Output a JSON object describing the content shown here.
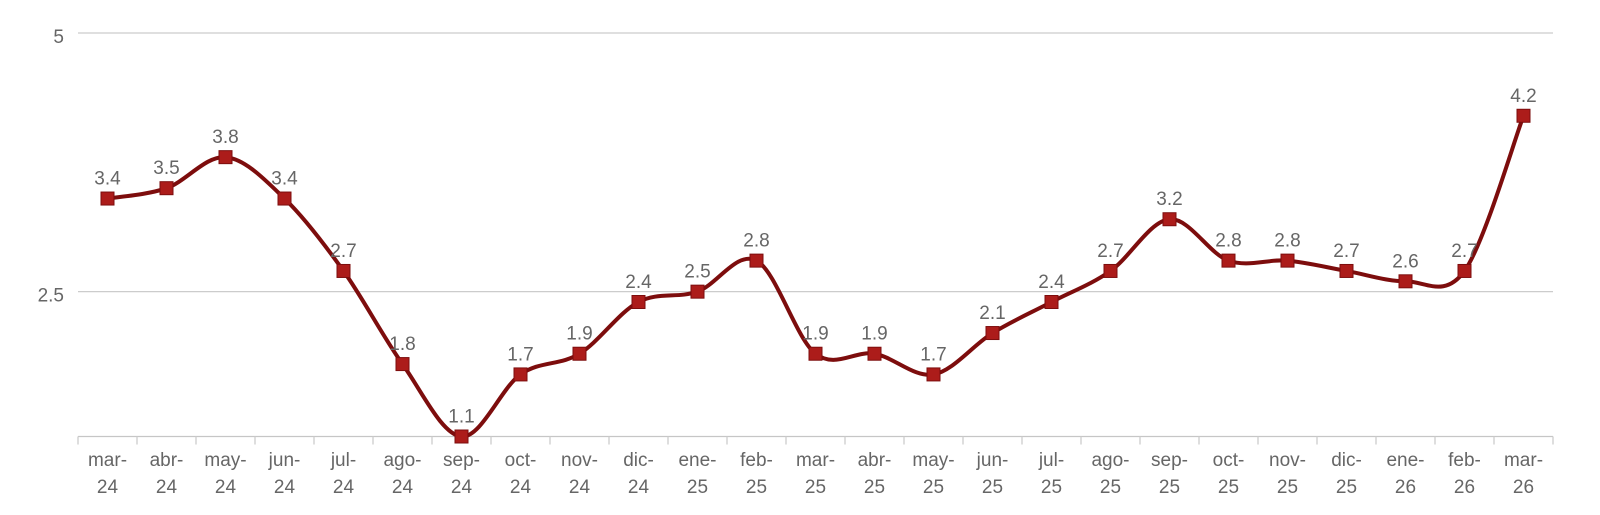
{
  "chart_data": {
    "type": "line",
    "line_shape": "spline",
    "title": "",
    "xlabel": "",
    "ylabel": "",
    "categories": [
      "mar-24",
      "abr-24",
      "may-24",
      "jun-24",
      "jul-24",
      "ago-24",
      "sep-24",
      "oct-24",
      "nov-24",
      "dic-24",
      "ene-25",
      "feb-25",
      "mar-25",
      "abr-25",
      "may-25",
      "jun-25",
      "jul-25",
      "ago-25",
      "sep-25",
      "oct-25",
      "nov-25",
      "dic-25",
      "ene-26",
      "feb-26",
      "mar-26"
    ],
    "values": [
      3.4,
      3.5,
      3.8,
      3.4,
      2.7,
      1.8,
      1.1,
      1.7,
      1.9,
      2.4,
      2.5,
      2.8,
      1.9,
      1.9,
      1.7,
      2.1,
      2.4,
      2.7,
      3.2,
      2.8,
      2.8,
      2.7,
      2.6,
      2.7,
      4.2
    ],
    "yticks": [
      2.5,
      5
    ],
    "ylim": [
      1.1,
      5
    ],
    "grid": "horizontal",
    "legend": "none",
    "data_labels": true,
    "colors": {
      "line": "#7d0d0d",
      "marker": "#ac1c1a",
      "data_label": "#666666",
      "axis_label": "#666666",
      "gridline": "#cccccc",
      "axis_line": "#c6c6c6",
      "tick": "#cccccc",
      "background": "#ffffff"
    }
  }
}
